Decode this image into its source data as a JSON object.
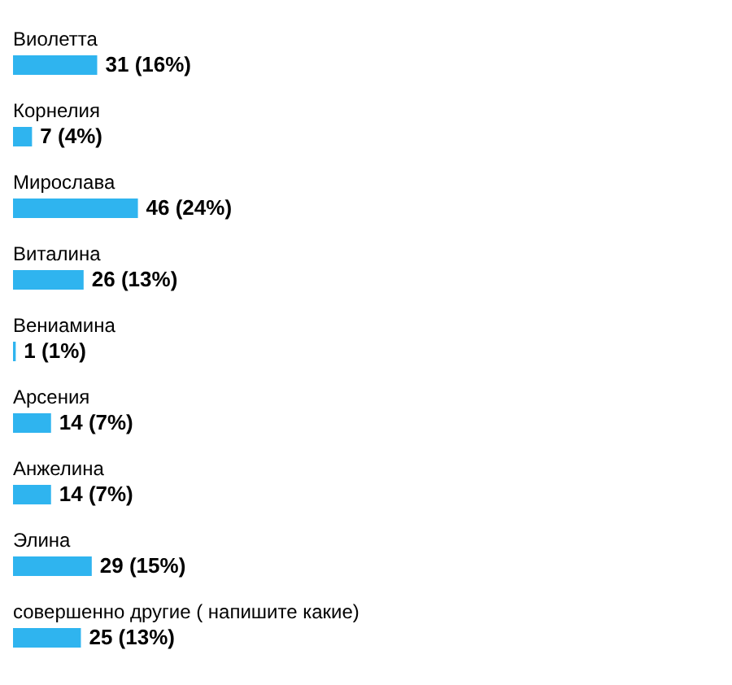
{
  "chart_data": {
    "type": "bar",
    "orientation": "horizontal",
    "categories": [
      "Виолетта",
      "Корнелия",
      "Мирослава",
      "Виталина",
      "Вениамина",
      "Арсения",
      "Анжелина",
      "Элина",
      "совершенно другие ( напишите какие)"
    ],
    "values": [
      31,
      7,
      46,
      26,
      1,
      14,
      14,
      29,
      25
    ],
    "value_labels": [
      "31 (16%)",
      "7 (4%)",
      "46 (24%)",
      "26 (13%)",
      "1 (1%)",
      "14 (7%)",
      "14 (7%)",
      "29 (15%)",
      "25 (13%)"
    ],
    "color": "#2fb4ef"
  }
}
